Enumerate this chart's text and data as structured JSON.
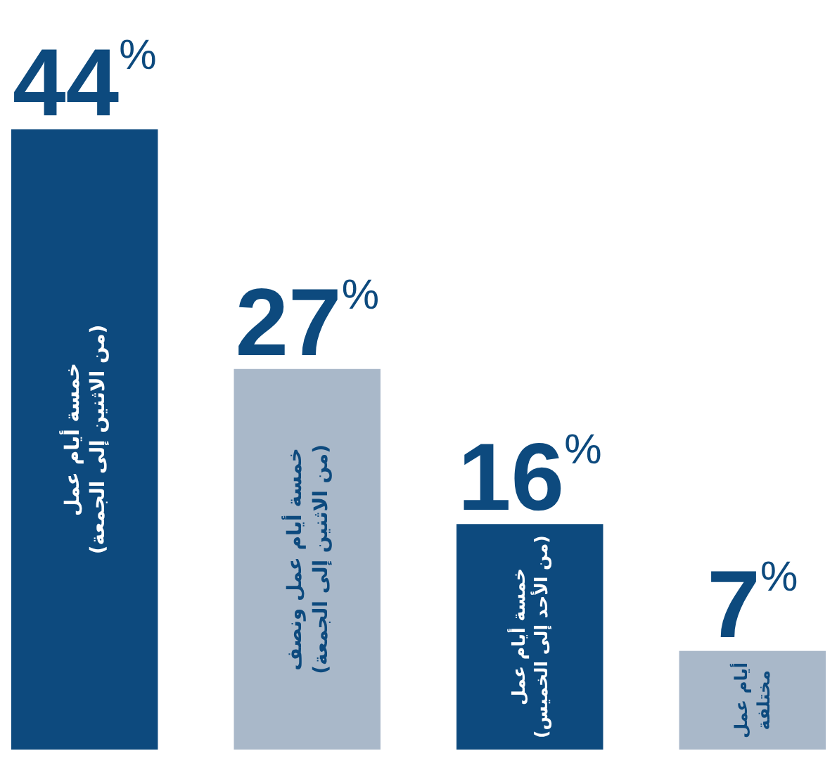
{
  "chart_data": {
    "type": "bar",
    "categories": [
      "خمسة أيام عمل\n(من الاثنين إلى الجمعة)",
      "خمسة أيام عمل ونصف\n(من الاثنين إلى الجمعة)",
      "خمسة أيام عمل\n(من الأحد إلى الخميس)",
      "أيام عمل\nمختلفة"
    ],
    "values": [
      44,
      27,
      16,
      7
    ],
    "colors": [
      "#0d4a7e",
      "#a9b8c9",
      "#0d4a7e",
      "#a9b8c9"
    ],
    "value_labels": [
      "44$^{%}$",
      "27$^{%}$",
      "16$^{%}$",
      "7$^{%}$"
    ]
  }
}
